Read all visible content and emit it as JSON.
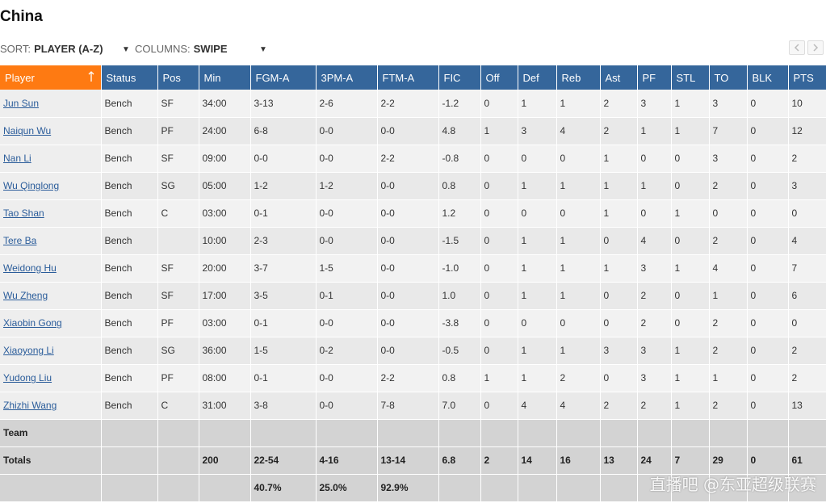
{
  "team_name": "China",
  "controls": {
    "sort_label": "SORT:",
    "sort_value": "PLAYER (A-Z)",
    "columns_label": "COLUMNS:",
    "columns_value": "SWIPE"
  },
  "columns": [
    "Player",
    "Status",
    "Pos",
    "Min",
    "FGM-A",
    "3PM-A",
    "FTM-A",
    "FIC",
    "Off",
    "Def",
    "Reb",
    "Ast",
    "PF",
    "STL",
    "TO",
    "BLK",
    "PTS"
  ],
  "players": [
    {
      "name": "Jun Sun",
      "status": "Bench",
      "pos": "SF",
      "min": "34:00",
      "fgm": "3-13",
      "tpm": "2-6",
      "ftm": "2-2",
      "fic": "-1.2",
      "off": "0",
      "def": "1",
      "reb": "1",
      "ast": "2",
      "pf": "3",
      "stl": "1",
      "to": "3",
      "blk": "0",
      "pts": "10"
    },
    {
      "name": "Naiqun Wu",
      "status": "Bench",
      "pos": "PF",
      "min": "24:00",
      "fgm": "6-8",
      "tpm": "0-0",
      "ftm": "0-0",
      "fic": "4.8",
      "off": "1",
      "def": "3",
      "reb": "4",
      "ast": "2",
      "pf": "1",
      "stl": "1",
      "to": "7",
      "blk": "0",
      "pts": "12"
    },
    {
      "name": "Nan Li",
      "status": "Bench",
      "pos": "SF",
      "min": "09:00",
      "fgm": "0-0",
      "tpm": "0-0",
      "ftm": "2-2",
      "fic": "-0.8",
      "off": "0",
      "def": "0",
      "reb": "0",
      "ast": "1",
      "pf": "0",
      "stl": "0",
      "to": "3",
      "blk": "0",
      "pts": "2"
    },
    {
      "name": "Wu Qinglong",
      "status": "Bench",
      "pos": "SG",
      "min": "05:00",
      "fgm": "1-2",
      "tpm": "1-2",
      "ftm": "0-0",
      "fic": "0.8",
      "off": "0",
      "def": "1",
      "reb": "1",
      "ast": "1",
      "pf": "1",
      "stl": "0",
      "to": "2",
      "blk": "0",
      "pts": "3"
    },
    {
      "name": "Tao Shan",
      "status": "Bench",
      "pos": "C",
      "min": "03:00",
      "fgm": "0-1",
      "tpm": "0-0",
      "ftm": "0-0",
      "fic": "1.2",
      "off": "0",
      "def": "0",
      "reb": "0",
      "ast": "1",
      "pf": "0",
      "stl": "1",
      "to": "0",
      "blk": "0",
      "pts": "0"
    },
    {
      "name": "Tere Ba",
      "status": "Bench",
      "pos": "",
      "min": "10:00",
      "fgm": "2-3",
      "tpm": "0-0",
      "ftm": "0-0",
      "fic": "-1.5",
      "off": "0",
      "def": "1",
      "reb": "1",
      "ast": "0",
      "pf": "4",
      "stl": "0",
      "to": "2",
      "blk": "0",
      "pts": "4"
    },
    {
      "name": "Weidong Hu",
      "status": "Bench",
      "pos": "SF",
      "min": "20:00",
      "fgm": "3-7",
      "tpm": "1-5",
      "ftm": "0-0",
      "fic": "-1.0",
      "off": "0",
      "def": "1",
      "reb": "1",
      "ast": "1",
      "pf": "3",
      "stl": "1",
      "to": "4",
      "blk": "0",
      "pts": "7"
    },
    {
      "name": "Wu Zheng",
      "status": "Bench",
      "pos": "SF",
      "min": "17:00",
      "fgm": "3-5",
      "tpm": "0-1",
      "ftm": "0-0",
      "fic": "1.0",
      "off": "0",
      "def": "1",
      "reb": "1",
      "ast": "0",
      "pf": "2",
      "stl": "0",
      "to": "1",
      "blk": "0",
      "pts": "6"
    },
    {
      "name": "Xiaobin Gong",
      "status": "Bench",
      "pos": "PF",
      "min": "03:00",
      "fgm": "0-1",
      "tpm": "0-0",
      "ftm": "0-0",
      "fic": "-3.8",
      "off": "0",
      "def": "0",
      "reb": "0",
      "ast": "0",
      "pf": "2",
      "stl": "0",
      "to": "2",
      "blk": "0",
      "pts": "0"
    },
    {
      "name": "Xiaoyong Li",
      "status": "Bench",
      "pos": "SG",
      "min": "36:00",
      "fgm": "1-5",
      "tpm": "0-2",
      "ftm": "0-0",
      "fic": "-0.5",
      "off": "0",
      "def": "1",
      "reb": "1",
      "ast": "3",
      "pf": "3",
      "stl": "1",
      "to": "2",
      "blk": "0",
      "pts": "2"
    },
    {
      "name": "Yudong Liu",
      "status": "Bench",
      "pos": "PF",
      "min": "08:00",
      "fgm": "0-1",
      "tpm": "0-0",
      "ftm": "2-2",
      "fic": "0.8",
      "off": "1",
      "def": "1",
      "reb": "2",
      "ast": "0",
      "pf": "3",
      "stl": "1",
      "to": "1",
      "blk": "0",
      "pts": "2"
    },
    {
      "name": "Zhizhi Wang",
      "status": "Bench",
      "pos": "C",
      "min": "31:00",
      "fgm": "3-8",
      "tpm": "0-0",
      "ftm": "7-8",
      "fic": "7.0",
      "off": "0",
      "def": "4",
      "reb": "4",
      "ast": "2",
      "pf": "2",
      "stl": "1",
      "to": "2",
      "blk": "0",
      "pts": "13"
    }
  ],
  "team_row": {
    "label": "Team"
  },
  "totals": {
    "label": "Totals",
    "min": "200",
    "fgm": "22-54",
    "tpm": "4-16",
    "ftm": "13-14",
    "fic": "6.8",
    "off": "2",
    "def": "14",
    "reb": "16",
    "ast": "13",
    "pf": "24",
    "stl": "7",
    "to": "29",
    "blk": "0",
    "pts": "61"
  },
  "percentages": {
    "fg": "40.7%",
    "tp": "25.0%",
    "ft": "92.9%"
  },
  "watermark": "直播吧 @东亚超级联赛",
  "colors": {
    "header_bg": "#35669b",
    "sorted_header_bg": "#fe7a12",
    "link": "#2a5c9a",
    "summary_bg": "#d3d3d3"
  },
  "icons": {
    "sort_indicator": "arrow-up-icon",
    "dropdown": "caret-down-icon",
    "pager_prev": "chevron-left-icon",
    "pager_next": "chevron-right-icon"
  }
}
